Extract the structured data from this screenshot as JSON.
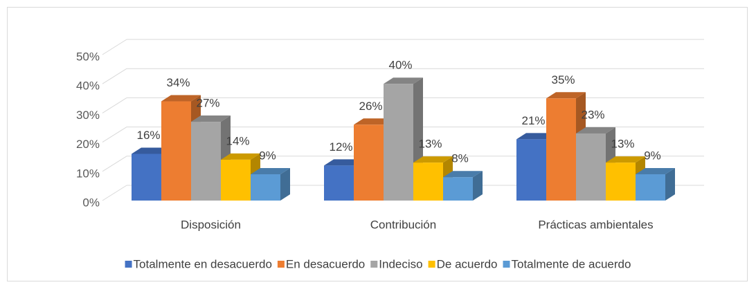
{
  "chart_data": {
    "type": "bar3d",
    "categories": [
      "Disposición",
      "Contribución",
      "Prácticas ambientales"
    ],
    "series": [
      {
        "name": "Totalmente en desacuerdo",
        "color": "#4472c4",
        "values": [
          16,
          12,
          21
        ],
        "value_labels": [
          "16%",
          "12%",
          "21%"
        ]
      },
      {
        "name": "En desacuerdo",
        "color": "#ed7d31",
        "values": [
          34,
          26,
          35
        ],
        "value_labels": [
          "34%",
          "26%",
          "35%"
        ]
      },
      {
        "name": "Indeciso",
        "color": "#a5a5a5",
        "values": [
          27,
          40,
          23
        ],
        "value_labels": [
          "27%",
          "40%",
          "23%"
        ]
      },
      {
        "name": "De acuerdo",
        "color": "#ffc000",
        "values": [
          14,
          13,
          13
        ],
        "value_labels": [
          "14%",
          "13%",
          "13%"
        ]
      },
      {
        "name": "Totalmente de acuerdo",
        "color": "#5b9bd5",
        "values": [
          9,
          8,
          9
        ],
        "value_labels": [
          "9%",
          "8%",
          "9%"
        ]
      }
    ],
    "ylim": [
      0,
      50
    ],
    "yticks": [
      {
        "value": 0,
        "label": "0%"
      },
      {
        "value": 10,
        "label": "10%"
      },
      {
        "value": 20,
        "label": "20%"
      },
      {
        "value": 30,
        "label": "30%"
      },
      {
        "value": 40,
        "label": "40%"
      },
      {
        "value": 50,
        "label": "50%"
      }
    ],
    "grid": true,
    "legend": "bottom"
  }
}
